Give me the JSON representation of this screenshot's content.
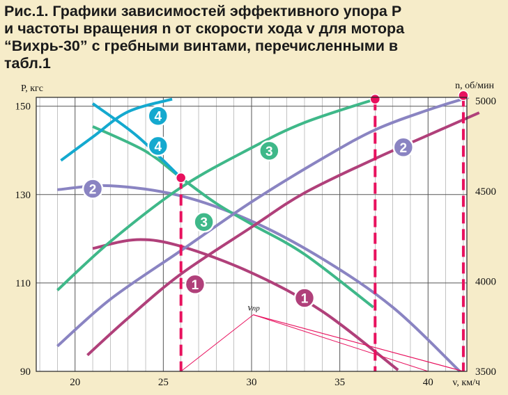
{
  "caption": {
    "line1": "Рис.1. Графики зависимостей эффективного упора P",
    "line2": "и частоты вращения n от скорости хода v для мотора",
    "line3": "“Вихрь-30” с гребными винтами, перечисленными в",
    "line4": "табл.1"
  },
  "chart_data": {
    "type": "line",
    "xlabel": "v, км/ч",
    "ylabel_left": "P, кгс",
    "ylabel_right": "n, об/мин",
    "xlim": [
      17.8,
      42.2
    ],
    "ylim_left": [
      90,
      152
    ],
    "ylim_right": [
      3500,
      5020
    ],
    "x_ticks": [
      20,
      25,
      30,
      35,
      40
    ],
    "y_ticks_left": [
      90,
      110,
      130,
      150
    ],
    "y_ticks_right": [
      3500,
      4000,
      4500,
      5000
    ],
    "grid": true,
    "colors": {
      "1": "#b0407a",
      "2": "#8a84c2",
      "3": "#3fb889",
      "4": "#14a9cf",
      "marker": "#e8115e",
      "vpr": "#e8115e"
    },
    "series": [
      {
        "name": "1",
        "kind": "P",
        "points": [
          [
            21.0,
            117.8
          ],
          [
            23.5,
            119.8
          ],
          [
            26.0,
            118.3
          ],
          [
            30.0,
            112.3
          ],
          [
            34.0,
            103.6
          ],
          [
            38.3,
            90.3
          ]
        ]
      },
      {
        "name": "2",
        "kind": "P",
        "points": [
          [
            19.0,
            131.1
          ],
          [
            22.0,
            132.0
          ],
          [
            26.0,
            129.7
          ],
          [
            30.0,
            124.0
          ],
          [
            34.0,
            115.5
          ],
          [
            38.0,
            104.5
          ],
          [
            41.8,
            90.0
          ]
        ]
      },
      {
        "name": "3",
        "kind": "P",
        "points": [
          [
            21.0,
            145.4
          ],
          [
            24.0,
            139.8
          ],
          [
            26.0,
            133.8
          ],
          [
            28.0,
            128.0
          ],
          [
            30.0,
            123.3
          ],
          [
            33.0,
            116.5
          ],
          [
            36.9,
            104.5
          ]
        ]
      },
      {
        "name": "4",
        "kind": "P",
        "points": [
          [
            21.0,
            150.6
          ],
          [
            23.5,
            143.3
          ],
          [
            26.0,
            133.8
          ]
        ]
      },
      {
        "name": "1",
        "kind": "n",
        "points": [
          [
            20.7,
            3590
          ],
          [
            23.0,
            3795
          ],
          [
            26.0,
            4040
          ],
          [
            30.0,
            4300
          ],
          [
            33.0,
            4490
          ],
          [
            37.0,
            4680
          ],
          [
            40.0,
            4810
          ],
          [
            42.9,
            4935
          ]
        ]
      },
      {
        "name": "2",
        "kind": "n",
        "points": [
          [
            19.0,
            3640
          ],
          [
            22.0,
            3900
          ],
          [
            26.0,
            4170
          ],
          [
            30.0,
            4440
          ],
          [
            34.0,
            4680
          ],
          [
            37.0,
            4840
          ],
          [
            40.0,
            4950
          ],
          [
            42.3,
            5020
          ]
        ]
      },
      {
        "name": "3",
        "kind": "n",
        "points": [
          [
            19.0,
            3950
          ],
          [
            22.0,
            4220
          ],
          [
            26.0,
            4520
          ],
          [
            30.0,
            4740
          ],
          [
            33.0,
            4880
          ],
          [
            37.0,
            5010
          ]
        ]
      },
      {
        "name": "4",
        "kind": "n",
        "points": [
          [
            19.2,
            4670
          ],
          [
            21.0,
            4800
          ],
          [
            23.0,
            4940
          ],
          [
            25.5,
            5010
          ]
        ]
      }
    ],
    "markers": [
      {
        "x": 26.0,
        "y": 133.8,
        "axis": "left"
      },
      {
        "x": 37.0,
        "y": 5010,
        "axis": "right"
      },
      {
        "x": 42.0,
        "y": 5030,
        "axis": "right"
      }
    ],
    "drop_lines": [
      26.0,
      37.0,
      42.0
    ],
    "annotation": {
      "label": "v",
      "subscript": "пр",
      "x": 30.1,
      "y": 102.8
    },
    "vpr_lines": [
      [
        [
          26.0,
          90.0
        ],
        [
          30.1,
          102.8
        ],
        [
          42.0,
          90.0
        ]
      ],
      [
        [
          30.1,
          102.8
        ],
        [
          40.0,
          90.0
        ]
      ],
      [
        [
          30.1,
          102.8
        ],
        [
          42.0,
          90.0
        ]
      ]
    ],
    "badges": [
      {
        "label": "1",
        "x": 26.8,
        "y": 109.7
      },
      {
        "label": "1",
        "x": 33.0,
        "y": 106.6
      },
      {
        "label": "2",
        "x": 21.0,
        "y": 131.3
      },
      {
        "label": "2",
        "x": 38.6,
        "y": 140.7
      },
      {
        "label": "3",
        "x": 31.0,
        "y": 139.9
      },
      {
        "label": "3",
        "x": 27.3,
        "y": 123.8
      },
      {
        "label": "4",
        "x": 24.7,
        "y": 147.8
      },
      {
        "label": "4",
        "x": 24.7,
        "y": 141.0
      }
    ]
  }
}
